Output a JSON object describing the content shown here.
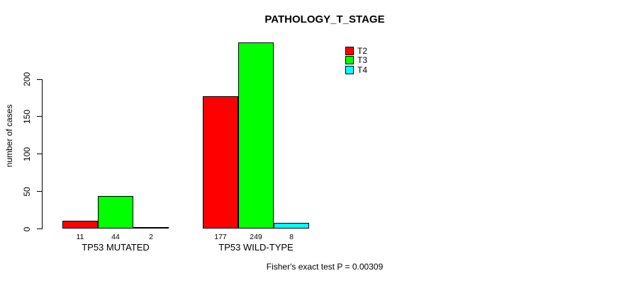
{
  "chart_data": {
    "type": "bar",
    "title": "PATHOLOGY_T_STAGE",
    "ylabel": "number of cases",
    "xlabel": "",
    "footnote": "Fisher's exact test P = 0.00309",
    "groups": [
      "TP53 MUTATED",
      "TP53 WILD-TYPE"
    ],
    "series": [
      {
        "name": "T2",
        "color": "#FF0000",
        "values": [
          11,
          177
        ]
      },
      {
        "name": "T3",
        "color": "#00FF00",
        "values": [
          44,
          249
        ]
      },
      {
        "name": "T4",
        "color": "#00FFFF",
        "values": [
          2,
          8
        ]
      }
    ],
    "yticks": [
      0,
      50,
      100,
      150,
      200
    ],
    "ylim": [
      0,
      250
    ],
    "grid": false,
    "legend": {
      "position": "top-right-inside",
      "entries": [
        "T2",
        "T3",
        "T4"
      ]
    }
  }
}
